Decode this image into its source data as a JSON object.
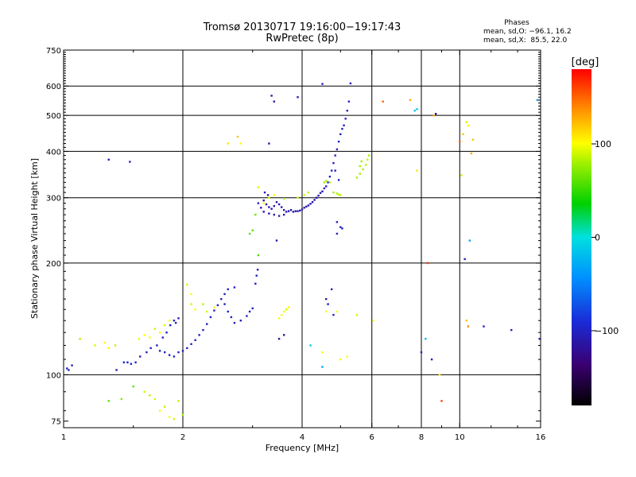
{
  "chart_data": {
    "type": "scatter",
    "title": "Tromsø 20130717 19:16:00−19:17:43",
    "subtitle": "RwPretec (8p)",
    "xlabel": "Frequency [MHz]",
    "ylabel": "Stationary phase Virtual Height [km]",
    "xscale": "log",
    "yscale": "log",
    "xlim": [
      1,
      16
    ],
    "ylim": [
      72,
      750
    ],
    "xticks": [
      1,
      2,
      4,
      6,
      8,
      10,
      16
    ],
    "xtick_labels": [
      "1",
      "2",
      "4",
      "6",
      "8",
      "10",
      "16"
    ],
    "yticks": [
      75,
      100,
      200,
      300,
      400,
      500,
      600,
      750
    ],
    "ytick_labels": [
      "75",
      "100",
      "200",
      "300",
      "400",
      "500",
      "600",
      "750"
    ],
    "grid_x": [
      2,
      4,
      6,
      8,
      10
    ],
    "grid_y": [
      100,
      200,
      300,
      400,
      500,
      600
    ],
    "phase_stats": {
      "title": "Phases",
      "line_o": "mean, sd,O: −96.1, 16.2",
      "line_x": "mean, sd,X:  85.5, 22.0"
    },
    "colorbar": {
      "label": "[deg]",
      "range": [
        -180,
        180
      ],
      "ticks": [
        100,
        0,
        -100
      ],
      "tick_labels": [
        "100",
        "0",
        "−100"
      ]
    },
    "points": [
      [
        1.02,
        104,
        -100
      ],
      [
        1.05,
        106,
        -100
      ],
      [
        1.03,
        103,
        -100
      ],
      [
        1.3,
        380,
        -100
      ],
      [
        1.47,
        375,
        -100
      ],
      [
        1.36,
        103,
        -105
      ],
      [
        1.42,
        108,
        -100
      ],
      [
        1.45,
        108,
        -100
      ],
      [
        1.48,
        107,
        -100
      ],
      [
        1.52,
        108,
        -100
      ],
      [
        1.56,
        112,
        -100
      ],
      [
        1.62,
        115,
        -100
      ],
      [
        1.66,
        118,
        -100
      ],
      [
        1.72,
        120,
        -100
      ],
      [
        1.78,
        126,
        -100
      ],
      [
        1.82,
        130,
        -100
      ],
      [
        1.86,
        136,
        -100
      ],
      [
        1.9,
        140,
        -100
      ],
      [
        1.95,
        142,
        -100
      ],
      [
        1.92,
        138,
        -100
      ],
      [
        1.75,
        116,
        -100
      ],
      [
        1.8,
        115,
        -100
      ],
      [
        1.85,
        113,
        -100
      ],
      [
        1.9,
        112,
        -100
      ],
      [
        1.95,
        115,
        -100
      ],
      [
        2.0,
        116,
        -100
      ],
      [
        2.05,
        118,
        -100
      ],
      [
        2.1,
        121,
        -100
      ],
      [
        2.15,
        124,
        -100
      ],
      [
        2.2,
        128,
        -100
      ],
      [
        2.25,
        132,
        -100
      ],
      [
        2.3,
        137,
        -100
      ],
      [
        2.35,
        143,
        -100
      ],
      [
        2.4,
        149,
        -100
      ],
      [
        2.45,
        154,
        -100
      ],
      [
        2.5,
        160,
        -100
      ],
      [
        2.55,
        155,
        -100
      ],
      [
        2.6,
        148,
        -100
      ],
      [
        2.65,
        143,
        -100
      ],
      [
        2.7,
        138,
        -100
      ],
      [
        2.8,
        140,
        -100
      ],
      [
        2.9,
        144,
        -100
      ],
      [
        2.95,
        148,
        -100
      ],
      [
        3.0,
        151,
        -100
      ],
      [
        2.6,
        170,
        -100
      ],
      [
        2.55,
        165,
        -100
      ],
      [
        2.7,
        172,
        -100
      ],
      [
        3.05,
        176,
        -100
      ],
      [
        3.07,
        185,
        -100
      ],
      [
        3.09,
        192,
        -105
      ],
      [
        3.1,
        290,
        -100
      ],
      [
        3.15,
        282,
        -110
      ],
      [
        3.2,
        295,
        -110
      ],
      [
        3.25,
        288,
        -110
      ],
      [
        3.3,
        283,
        -110
      ],
      [
        3.35,
        280,
        -110
      ],
      [
        3.4,
        285,
        -110
      ],
      [
        3.45,
        292,
        -110
      ],
      [
        3.5,
        288,
        -110
      ],
      [
        3.55,
        283,
        -110
      ],
      [
        3.6,
        278,
        -110
      ],
      [
        3.65,
        275,
        -110
      ],
      [
        3.7,
        276,
        -110
      ],
      [
        3.75,
        278,
        -110
      ],
      [
        3.8,
        275,
        -110
      ],
      [
        3.85,
        276,
        -110
      ],
      [
        3.9,
        276,
        -110
      ],
      [
        3.95,
        277,
        -110
      ],
      [
        4.0,
        279,
        -110
      ],
      [
        4.05,
        282,
        -110
      ],
      [
        4.1,
        284,
        -110
      ],
      [
        4.15,
        286,
        -110
      ],
      [
        4.2,
        289,
        -110
      ],
      [
        4.25,
        292,
        -110
      ],
      [
        4.3,
        296,
        -110
      ],
      [
        4.35,
        300,
        -110
      ],
      [
        4.4,
        304,
        -110
      ],
      [
        4.45,
        309,
        -110
      ],
      [
        4.5,
        312,
        -110
      ],
      [
        3.2,
        275,
        -110
      ],
      [
        3.3,
        272,
        -110
      ],
      [
        3.4,
        270,
        -110
      ],
      [
        3.5,
        268,
        -110
      ],
      [
        3.6,
        270,
        -110
      ],
      [
        3.22,
        310,
        -110
      ],
      [
        3.28,
        305,
        -110
      ],
      [
        4.55,
        318,
        -100
      ],
      [
        4.6,
        322,
        -100
      ],
      [
        4.65,
        330,
        -100
      ],
      [
        4.7,
        342,
        -100
      ],
      [
        4.75,
        355,
        -100
      ],
      [
        4.8,
        372,
        -100
      ],
      [
        4.85,
        390,
        -100
      ],
      [
        4.9,
        405,
        -100
      ],
      [
        4.95,
        425,
        -100
      ],
      [
        5.0,
        445,
        -100
      ],
      [
        5.05,
        460,
        -100
      ],
      [
        5.1,
        470,
        -100
      ],
      [
        5.15,
        490,
        -100
      ],
      [
        5.2,
        515,
        -100
      ],
      [
        5.25,
        545,
        -100
      ],
      [
        5.3,
        610,
        -100
      ],
      [
        3.35,
        565,
        -110
      ],
      [
        3.4,
        545,
        -110
      ],
      [
        3.9,
        560,
        -110
      ],
      [
        4.5,
        608,
        -100
      ],
      [
        3.3,
        420,
        -110
      ],
      [
        3.45,
        230,
        -110
      ],
      [
        3.5,
        125,
        -110
      ],
      [
        3.6,
        128,
        -110
      ],
      [
        4.55,
        330,
        80
      ],
      [
        4.6,
        333,
        80
      ],
      [
        4.7,
        330,
        85
      ],
      [
        4.8,
        310,
        80
      ],
      [
        4.9,
        308,
        80
      ],
      [
        4.95,
        306,
        85
      ],
      [
        5.0,
        305,
        85
      ],
      [
        5.5,
        340,
        80
      ],
      [
        5.6,
        348,
        80
      ],
      [
        5.7,
        358,
        80
      ],
      [
        5.8,
        368,
        85
      ],
      [
        5.85,
        380,
        85
      ],
      [
        5.9,
        390,
        80
      ],
      [
        5.6,
        365,
        80
      ],
      [
        5.65,
        376,
        80
      ],
      [
        3.1,
        320,
        90
      ],
      [
        3.2,
        290,
        100
      ],
      [
        3.3,
        300,
        95
      ],
      [
        3.4,
        305,
        100
      ],
      [
        3.6,
        298,
        85
      ],
      [
        3.9,
        300,
        90
      ],
      [
        4.05,
        305,
        90
      ],
      [
        4.15,
        310,
        85
      ],
      [
        3.5,
        142,
        100
      ],
      [
        3.55,
        145,
        100
      ],
      [
        3.6,
        148,
        100
      ],
      [
        3.65,
        150,
        90
      ],
      [
        3.7,
        152,
        100
      ],
      [
        4.9,
        148,
        100
      ],
      [
        5.5,
        145,
        90
      ],
      [
        4.6,
        148,
        100
      ],
      [
        1.1,
        125,
        85
      ],
      [
        1.2,
        120,
        90
      ],
      [
        1.27,
        122,
        100
      ],
      [
        1.3,
        118,
        100
      ],
      [
        1.35,
        120,
        85
      ],
      [
        1.55,
        125,
        95
      ],
      [
        1.6,
        128,
        100
      ],
      [
        1.65,
        126,
        100
      ],
      [
        1.7,
        133,
        90
      ],
      [
        1.75,
        130,
        100
      ],
      [
        1.8,
        136,
        90
      ],
      [
        1.85,
        140,
        100
      ],
      [
        1.5,
        93,
        60
      ],
      [
        1.6,
        90,
        90
      ],
      [
        1.65,
        88,
        85
      ],
      [
        1.7,
        86,
        90
      ],
      [
        1.75,
        80,
        100
      ],
      [
        1.8,
        82,
        85
      ],
      [
        1.85,
        77,
        100
      ],
      [
        1.9,
        76,
        90
      ],
      [
        1.95,
        85,
        85
      ],
      [
        2.0,
        78,
        80
      ],
      [
        1.3,
        85,
        60
      ],
      [
        1.4,
        86,
        70
      ],
      [
        2.05,
        175,
        90
      ],
      [
        2.1,
        165,
        100
      ],
      [
        2.1,
        155,
        90
      ],
      [
        2.15,
        150,
        100
      ],
      [
        2.25,
        155,
        85
      ],
      [
        2.3,
        148,
        90
      ],
      [
        2.4,
        152,
        100
      ],
      [
        2.75,
        438,
        120
      ],
      [
        2.8,
        420,
        100
      ],
      [
        2.6,
        420,
        110
      ],
      [
        3.0,
        245,
        60
      ],
      [
        3.05,
        270,
        65
      ],
      [
        3.1,
        210,
        55
      ],
      [
        2.95,
        240,
        60
      ],
      [
        4.5,
        115,
        100
      ],
      [
        5.0,
        110,
        105
      ],
      [
        5.2,
        112,
        100
      ],
      [
        6.05,
        140,
        100
      ],
      [
        6.4,
        545,
        150
      ],
      [
        7.5,
        550,
        130
      ],
      [
        8.6,
        500,
        130
      ],
      [
        7.8,
        355,
        110
      ],
      [
        8.3,
        200,
        160
      ],
      [
        8.0,
        115,
        -100
      ],
      [
        8.5,
        110,
        -100
      ],
      [
        8.9,
        100,
        100
      ],
      [
        9.0,
        85,
        160
      ],
      [
        10.0,
        425,
        150
      ],
      [
        10.2,
        445,
        120
      ],
      [
        10.5,
        470,
        100
      ],
      [
        10.7,
        395,
        130
      ],
      [
        10.4,
        480,
        90
      ],
      [
        10.8,
        430,
        120
      ],
      [
        10.6,
        230,
        -30
      ],
      [
        10.3,
        205,
        -100
      ],
      [
        10.4,
        140,
        120
      ],
      [
        11.5,
        135,
        -100
      ],
      [
        13.5,
        132,
        -100
      ],
      [
        15.7,
        550,
        -30
      ],
      [
        15.9,
        125,
        -100
      ],
      [
        7.8,
        520,
        -10
      ],
      [
        7.7,
        515,
        -10
      ],
      [
        8.7,
        505,
        -120
      ],
      [
        10.1,
        345,
        90
      ],
      [
        10.5,
        135,
        140
      ],
      [
        8.2,
        125,
        -20
      ],
      [
        4.95,
        335,
        -100
      ],
      [
        4.85,
        355,
        -100
      ],
      [
        4.9,
        258,
        -100
      ],
      [
        5.0,
        250,
        -100
      ],
      [
        5.05,
        248,
        -100
      ],
      [
        4.9,
        240,
        -100
      ],
      [
        4.6,
        160,
        -110
      ],
      [
        4.65,
        155,
        -110
      ],
      [
        4.75,
        170,
        -100
      ],
      [
        4.8,
        145,
        -100
      ],
      [
        4.5,
        105,
        -30
      ],
      [
        4.2,
        120,
        -10
      ]
    ]
  }
}
